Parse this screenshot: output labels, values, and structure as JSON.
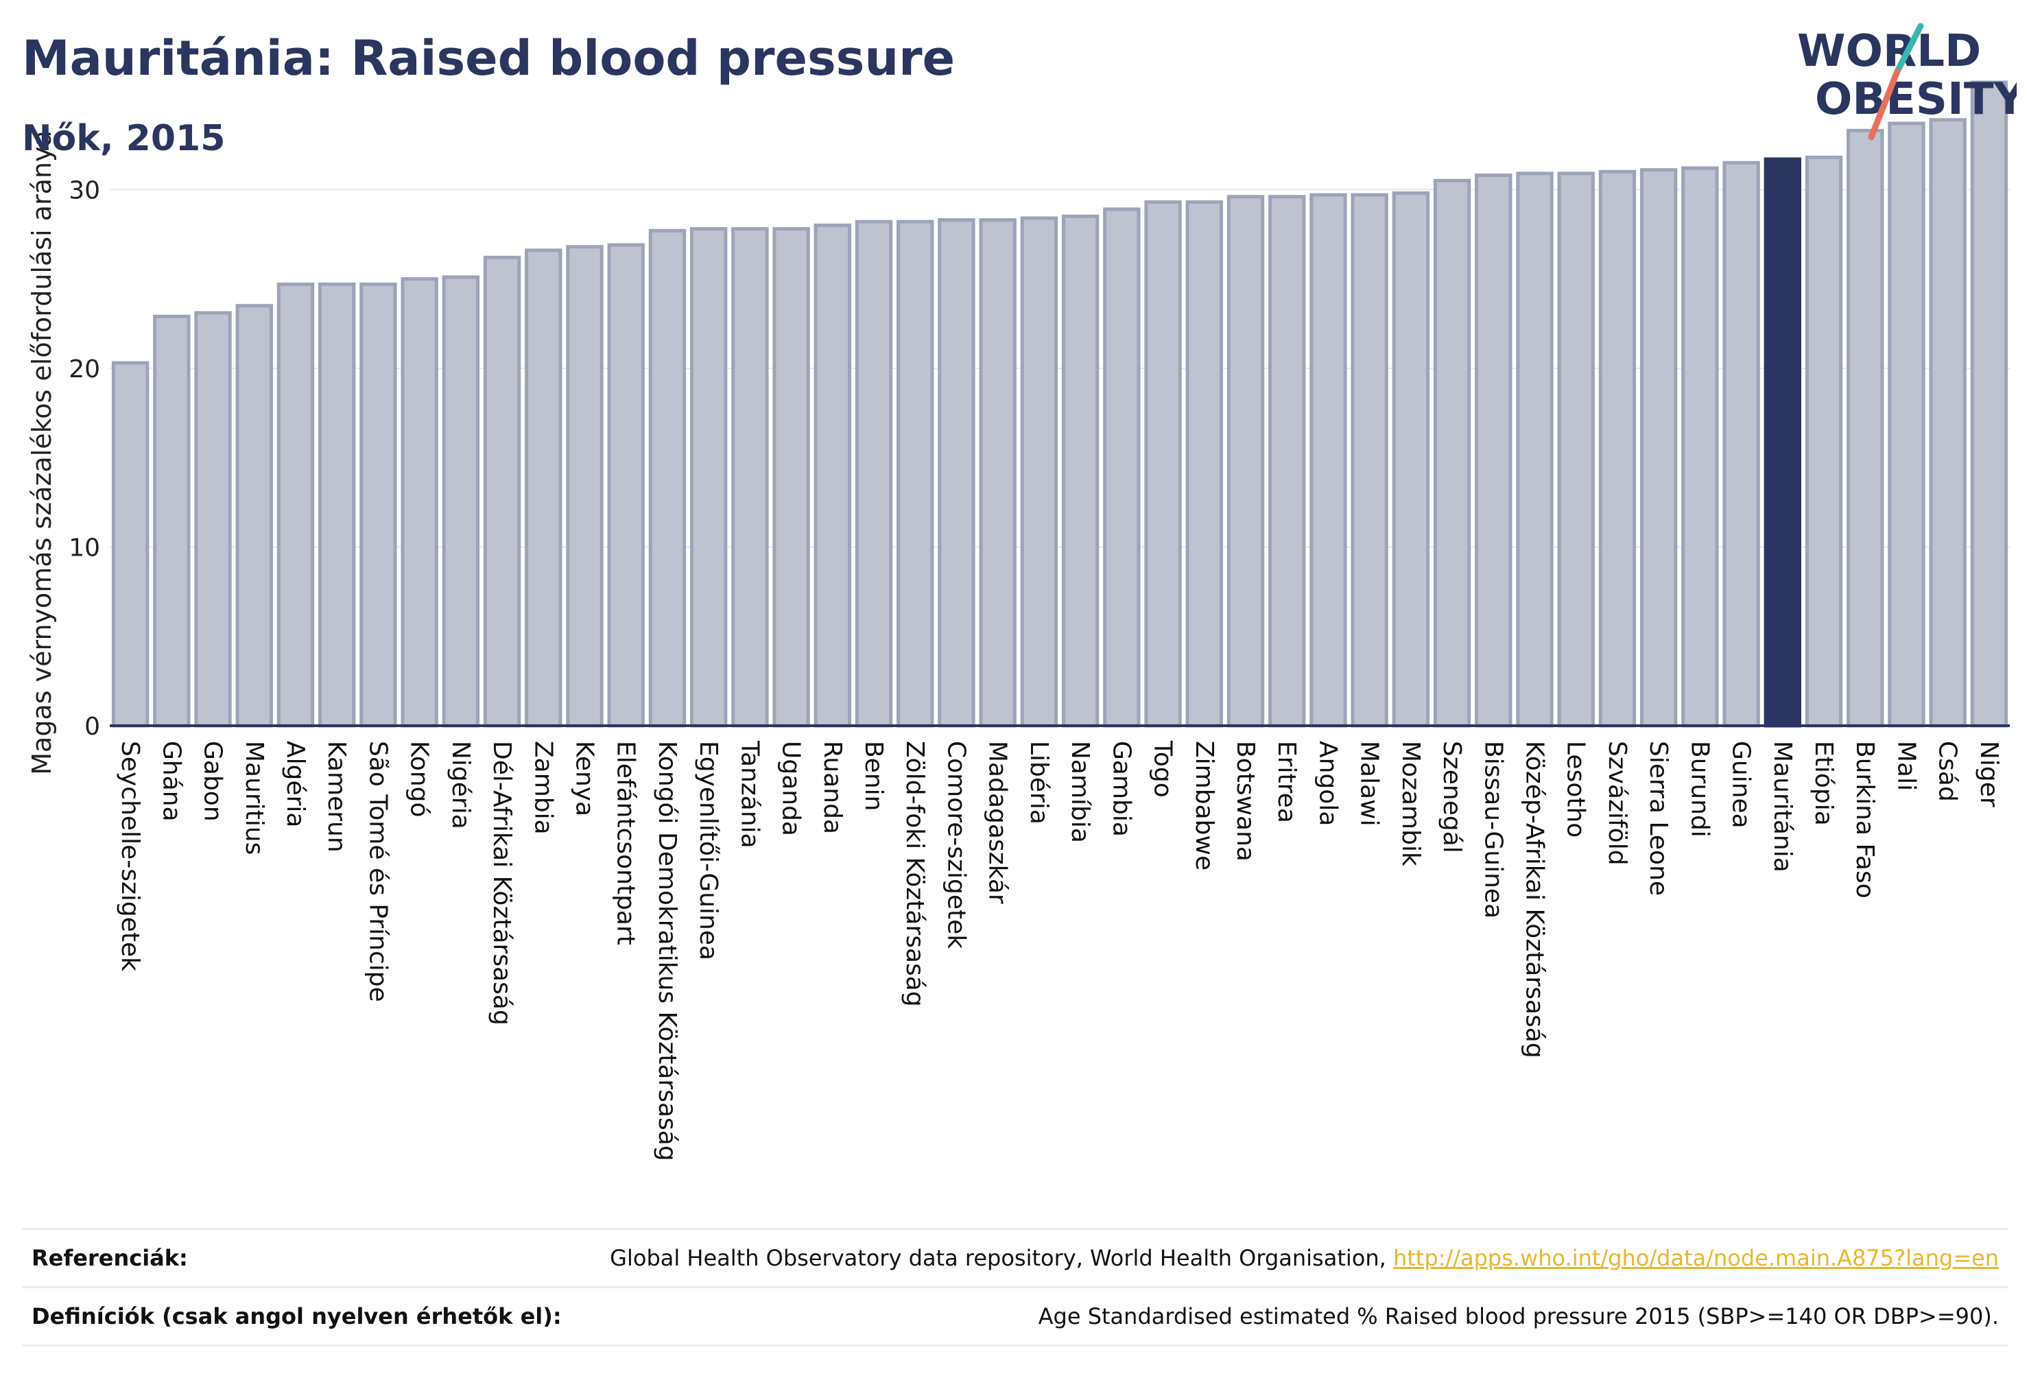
{
  "header": {
    "title": "Mauritánia: Raised blood pressure",
    "subtitle": "Nők, 2015"
  },
  "logo": {
    "line1": "WORLD",
    "line2": "OBESITY"
  },
  "chart_data": {
    "type": "bar",
    "ylabel": "Magas vérnyomás százalékos előfordulási aránya",
    "ylim": [
      0,
      36
    ],
    "yticks": [
      "0",
      "10",
      "20",
      "30"
    ],
    "grid": true,
    "highlight": "Mauritánia",
    "categories": [
      "Seychelle-szigetek",
      "Ghána",
      "Gabon",
      "Mauritius",
      "Algéria",
      "Kamerun",
      "São Tomé és Príncipe",
      "Kongó",
      "Nigéria",
      "Dél-Afrikai Köztársaság",
      "Zambia",
      "Kenya",
      "Elefántcsontpart",
      "Kongói Demokratikus Köztársaság",
      "Egyenlítői-Guinea",
      "Tanzánia",
      "Uganda",
      "Ruanda",
      "Benin",
      "Zöld-foki Köztársaság",
      "Comore-szigetek",
      "Madagaszkár",
      "Libéria",
      "Namíbia",
      "Gambia",
      "Togo",
      "Zimbabwe",
      "Botswana",
      "Eritrea",
      "Angola",
      "Malawi",
      "Mozambik",
      "Szenegál",
      "Bissau-Guinea",
      "Közép-Afrikai Köztársaság",
      "Lesotho",
      "Szváziföld",
      "Sierra Leone",
      "Burundi",
      "Guinea",
      "Mauritánia",
      "Etiópia",
      "Burkina Faso",
      "Mali",
      "Csád",
      "Niger"
    ],
    "values": [
      20.3,
      22.9,
      23.1,
      23.5,
      24.7,
      24.7,
      24.7,
      25.0,
      25.1,
      26.2,
      26.6,
      26.8,
      26.9,
      27.7,
      27.8,
      27.8,
      27.8,
      28.0,
      28.2,
      28.2,
      28.3,
      28.3,
      28.4,
      28.5,
      28.9,
      29.3,
      29.3,
      29.6,
      29.6,
      29.7,
      29.7,
      29.8,
      30.5,
      30.8,
      30.9,
      30.9,
      31.0,
      31.1,
      31.2,
      31.5,
      31.7,
      31.8,
      33.3,
      33.7,
      33.9,
      36.0
    ],
    "colors": {
      "bar": "#bfc3d0",
      "bar_stroke": "#9da3b8",
      "highlight": "#2a365f",
      "axis": "#2a365f",
      "grid": "#e6e6e6"
    }
  },
  "references": {
    "ref_label": "Referenciák:",
    "ref_text": "Global Health Observatory data repository, World Health Organisation, ",
    "ref_link": "http://apps.who.int/gho/data/node.main.A875?lang=en",
    "def_label": "Definíciók (csak angol nyelven érhetők el):",
    "def_text": "Age Standardised estimated % Raised blood pressure 2015 (SBP>=140 OR DBP>=90)."
  }
}
